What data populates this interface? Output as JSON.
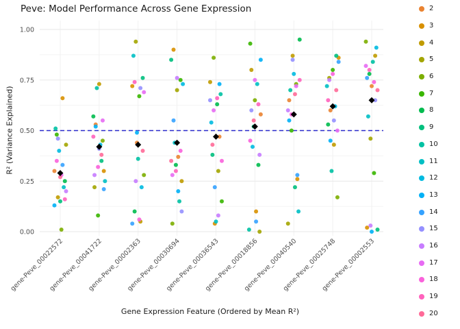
{
  "chart_data": {
    "type": "scatter",
    "title": "Peve: Model Performance Across Gene Expression",
    "xlabel": "Gene Expression Feature (Ordered by Mean R²)",
    "ylabel": "R² (Variance Explained)",
    "ylim": [
      0,
      1
    ],
    "y_ticks": [
      0,
      0.25,
      0.5,
      0.75,
      1.0
    ],
    "grid": true,
    "legend_position": "right",
    "reference_line": {
      "y": 0.5,
      "style": "dashed",
      "color": "#2929cc"
    },
    "fold_labels": [
      "2",
      "3",
      "4",
      "5",
      "6",
      "7",
      "8",
      "9",
      "10",
      "11",
      "12",
      "13",
      "14",
      "15",
      "16",
      "17",
      "18",
      "19",
      "20"
    ],
    "fold_colors": [
      "#EA8331",
      "#D89000",
      "#C09B00",
      "#A3A500",
      "#7CAE00",
      "#39B600",
      "#00BB4E",
      "#00BF7D",
      "#00C1A3",
      "#00BFC4",
      "#00BAE0",
      "#00B0F6",
      "#35A2FF",
      "#9590FF",
      "#C77CFF",
      "#E76BF3",
      "#FA62DB",
      "#FF62BC",
      "#FF6A98"
    ],
    "categories": [
      "gene-Peve_00022572",
      "gene-Peve_00041722",
      "gene-Peve_00002363",
      "gene-Peve_00030694",
      "gene-Peve_00036543",
      "gene-Peve_00018856",
      "gene-Peve_00040540",
      "gene-Peve_00025748",
      "gene-Peve_00002553"
    ],
    "mean_r2": [
      0.29,
      0.42,
      0.43,
      0.44,
      0.47,
      0.52,
      0.58,
      0.62,
      0.65
    ],
    "points_by_category": [
      [
        0.3,
        0.66,
        0.17,
        0.43,
        0.01,
        0.48,
        0.25,
        0.15,
        0.51,
        0.22,
        0.4,
        0.13,
        0.33,
        0.46,
        0.2,
        0.28,
        0.35,
        0.16,
        0.27
      ],
      [
        0.53,
        0.3,
        0.73,
        0.22,
        0.45,
        0.08,
        0.57,
        0.35,
        0.71,
        0.25,
        0.43,
        0.52,
        0.21,
        0.41,
        0.28,
        0.55,
        0.32,
        0.47,
        0.38
      ],
      [
        0.44,
        0.72,
        0.05,
        0.94,
        0.28,
        0.67,
        0.1,
        0.76,
        0.36,
        0.87,
        0.22,
        0.49,
        0.04,
        0.71,
        0.25,
        0.69,
        0.06,
        0.74,
        0.4
      ],
      [
        0.37,
        0.9,
        0.25,
        0.7,
        0.04,
        0.75,
        0.33,
        0.85,
        0.15,
        0.44,
        0.73,
        0.2,
        0.55,
        0.1,
        0.76,
        0.28,
        0.4,
        0.3,
        0.35
      ],
      [
        0.47,
        0.04,
        0.74,
        0.3,
        0.86,
        0.15,
        0.63,
        0.38,
        0.68,
        0.05,
        0.54,
        0.73,
        0.22,
        0.65,
        0.08,
        0.6,
        0.35,
        0.66,
        0.43
      ],
      [
        0.58,
        0.1,
        0.8,
        0.0,
        0.65,
        0.93,
        0.33,
        0.52,
        0.01,
        0.73,
        0.42,
        0.85,
        0.05,
        0.6,
        0.38,
        0.75,
        0.45,
        0.63,
        0.55
      ],
      [
        0.65,
        0.26,
        0.87,
        0.04,
        0.73,
        0.5,
        0.95,
        0.22,
        0.7,
        0.1,
        0.78,
        0.55,
        0.28,
        0.85,
        0.6,
        0.72,
        0.58,
        0.75,
        0.68
      ],
      [
        0.6,
        0.86,
        0.43,
        0.76,
        0.17,
        0.8,
        0.53,
        0.87,
        0.3,
        0.72,
        0.62,
        0.45,
        0.84,
        0.55,
        0.75,
        0.5,
        0.78,
        0.65,
        0.7
      ],
      [
        0.72,
        0.02,
        0.87,
        0.46,
        0.94,
        0.29,
        0.78,
        0.01,
        0.84,
        0.57,
        0.91,
        0.0,
        0.76,
        0.65,
        0.03,
        0.82,
        0.74,
        0.8,
        0.7
      ]
    ]
  }
}
